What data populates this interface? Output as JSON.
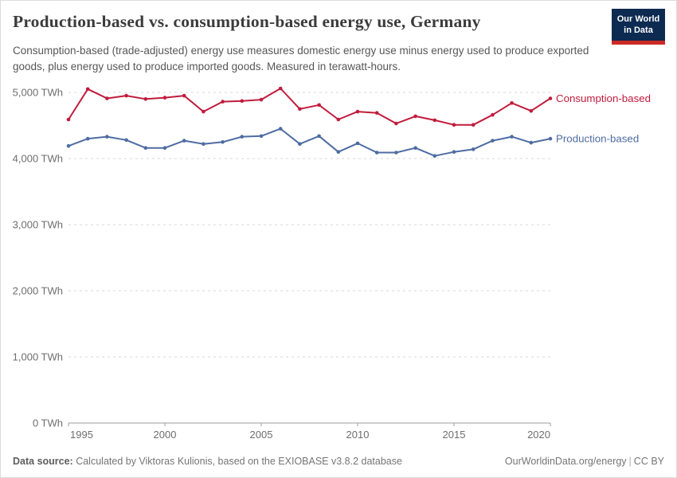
{
  "header": {
    "title": "Production-based vs. consumption-based energy use, Germany",
    "subtitle": "Consumption-based (trade-adjusted) energy use measures domestic energy use minus energy used to produce exported goods, plus energy used to produce imported goods. Measured in terawatt-hours.",
    "logo": {
      "line1": "Our World",
      "line2": "in Data",
      "bg_color": "#0d2a51",
      "accent_color": "#cc2a27"
    }
  },
  "chart_data": {
    "type": "line",
    "x": [
      1995,
      1996,
      1997,
      1998,
      1999,
      2000,
      2001,
      2002,
      2003,
      2004,
      2005,
      2006,
      2007,
      2008,
      2009,
      2010,
      2011,
      2012,
      2013,
      2014,
      2015,
      2016,
      2017,
      2018,
      2019,
      2020
    ],
    "series": [
      {
        "name": "Consumption-based",
        "color": "#c11c3d",
        "values": [
          4590,
          5050,
          4910,
          4950,
          4900,
          4920,
          4950,
          4710,
          4860,
          4870,
          4890,
          5060,
          4750,
          4810,
          4590,
          4710,
          4690,
          4530,
          4640,
          4580,
          4510,
          4510,
          4660,
          4840,
          4720,
          4910
        ]
      },
      {
        "name": "Production-based",
        "color": "#4e6ca2",
        "values": [
          4190,
          4300,
          4330,
          4280,
          4160,
          4160,
          4270,
          4220,
          4250,
          4330,
          4340,
          4450,
          4220,
          4340,
          4100,
          4230,
          4090,
          4090,
          4160,
          4040,
          4100,
          4140,
          4270,
          4330,
          4240,
          4300
        ]
      }
    ],
    "xlim": [
      1995,
      2020
    ],
    "ylim": [
      0,
      5000
    ],
    "xticks": [
      1995,
      2000,
      2005,
      2010,
      2015,
      2020
    ],
    "yticks": [
      0,
      1000,
      2000,
      3000,
      4000,
      5000
    ],
    "ytick_labels": [
      "0 TWh",
      "1,000 TWh",
      "2,000 TWh",
      "3,000 TWh",
      "4,000 TWh",
      "5,000 TWh"
    ],
    "grid": "horizontal-dashed",
    "legend_position": "right-end-labels",
    "unit": "TWh"
  },
  "footer": {
    "source_label": "Data source:",
    "source_text": " Calculated by Viktoras Kulionis, based on the EXIOBASE v3.8.2 database",
    "link": "OurWorldinData.org/energy",
    "separator": "|",
    "license": "CC BY"
  }
}
